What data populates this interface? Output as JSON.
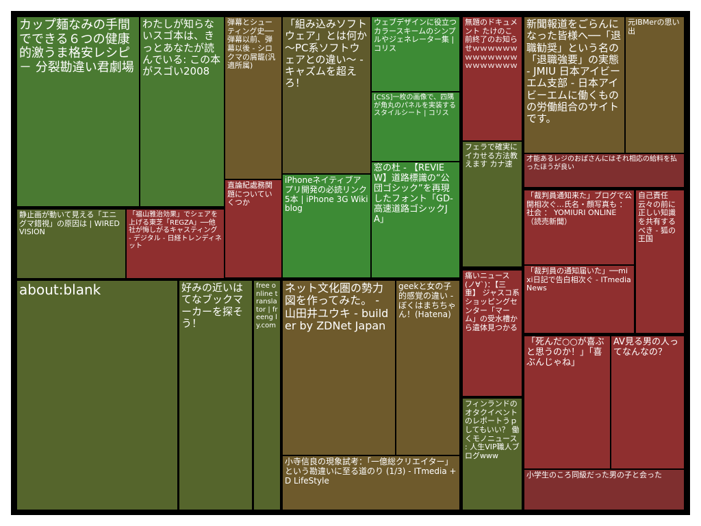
{
  "tiles": [
    {
      "key": "cupmen",
      "text": "カップ麺なみの手間でできる６つの健康的激うま格安レシピ － 分裂勘違い君劇場",
      "color": "#4a7a32"
    },
    {
      "key": "sugoi-hon",
      "text": "わたしが知らないスゴ本は、きっとあなたが読んでいる: この本がスゴい2008",
      "color": "#4a7a32"
    },
    {
      "key": "danmaku",
      "text": "弾幕とシューティング史──弾幕以前、弾幕以後 - シロクマの屑籠(汎適所属)",
      "color": "#6e5a2c"
    },
    {
      "key": "kumikomi",
      "text": "「組み込みソフトウェア」とは何か　～PC系ソフトウェアとの違い～ - キャズムを超えろ！",
      "color": "#5f5a2c"
    },
    {
      "key": "webdesign",
      "text": "ウェブデザインに役立つカラースキームのシンプルやジェネレーター集 | コリス",
      "color": "#3d8b35"
    },
    {
      "key": "mudai",
      "text": "無題のドキュメント たけのこ前終了のお知らせｗｗｗｗｗｗｗｗｗｗｗｗｗｗｗｗｗｗｗｗ",
      "color": "#8f2f2f"
    },
    {
      "key": "shinbun",
      "text": "新聞報道をごらんになった皆様へ──「退職勧奨」という名の「退職強要」の実態 - JMIU 日本アイビーエム支部 - 日本アイビーエムに働くものの労働組合のサイトです。",
      "color": "#6e5a2c"
    },
    {
      "key": "moto-ibm",
      "text": "元IBMerの思い出",
      "color": "#6e5a2c"
    },
    {
      "key": "css-kado",
      "text": "[CSS]一枚の画像で、四隅が角丸のパネルを実装するスタイルシート | コリス",
      "color": "#3d8b35"
    },
    {
      "key": "firefox",
      "text": "フェラで確実にイカせる方法教えます カナ速",
      "color": "#55652c"
    },
    {
      "key": "reji",
      "text": "才能あるレジのおばさんにはそれ相応の給料を払ったほうが良い",
      "color": "#7f2f2f"
    },
    {
      "key": "iphone",
      "text": "iPhoneネイティブアプリ開発の必読リンク5本 | iPhone 3G Wiki blog",
      "color": "#3d8b35"
    },
    {
      "key": "madonomori",
      "text": "窓の杜 - 【REVIEW】道路標識の“公団ゴシック”を再現したフォント「GD-高速道路ゴシックJA」",
      "color": "#3d8b35"
    },
    {
      "key": "chokuron",
      "text": "直論紀處務関題についていくつか",
      "color": "#8f2f2f"
    },
    {
      "key": "saibanin",
      "text": "「裁判員通知来た」ブログで公開相次ぐ…氏名・顔写真も ： 社会 ： YOMIURI ONLINE （読売新聞）",
      "color": "#8f2f2f"
    },
    {
      "key": "jiko",
      "text": "自己責任云々の前に正しい知識を共有するべき - 狐の王国",
      "color": "#8f2f2f"
    },
    {
      "key": "seishi",
      "text": "静止画が動いて見える「エニグマ錯視」の原因は | WIRED VISION",
      "color": "#55652c"
    },
    {
      "key": "fukuyama",
      "text": "「福山雅治効果」でシェアを上げる東芝「REGZA」──他社が悔しがるキャスティング - デジタル - 日経トレンディネット",
      "color": "#8f2f2f"
    },
    {
      "key": "itai-news",
      "text": "痛いニュース(ノ∀`)：【三重】 ジャスコ系ショッピングセンター「マーム」の受水槽から遺体見つかる",
      "color": "#8f2f2f"
    },
    {
      "key": "saibanin2",
      "text": "「裁判員の通知届いた」──mixi日記で告白相次ぐ - ITmedia News",
      "color": "#8f2f2f"
    },
    {
      "key": "aboutblank",
      "text": "about:blank",
      "color": "#55652c"
    },
    {
      "key": "hatena-bm",
      "text": "好みの近いはてなブックマーカーを探そう！",
      "color": "#55652c"
    },
    {
      "key": "translator",
      "text": "free online translator | freeng ly.com",
      "color": "#55652c"
    },
    {
      "key": "netbunka",
      "text": "ネット文化圏の勢力図を作ってみた。 - 山田井ユウキ - builder by ZDNet Japan",
      "color": "#6e5a2c"
    },
    {
      "key": "geek",
      "text": "geekと女の子的感覚の違い - ぼくはまちちゃん！(Hatena)",
      "color": "#6e5a2c"
    },
    {
      "key": "shinda",
      "text": "「死んだ○○が喜ぶと思うのか！」「喜ぶんじゃね」",
      "color": "#8f2f2f"
    },
    {
      "key": "av",
      "text": "AV見る男の人ってなんなの？",
      "color": "#8f2f2f"
    },
    {
      "key": "finland",
      "text": "フィンランドのオタクイベントのレポートうｐしてもいい？ 働くモノニュース : 人生VIP職人ブログwww",
      "color": "#55652c"
    },
    {
      "key": "kodera",
      "text": "小寺信良の現象試考：「一億総クリエイター」という勘違いに至る道のり (1/3) - ITmedia +D LifeStyle",
      "color": "#6e5a2c"
    },
    {
      "key": "shougakusei",
      "text": "小学生のころ同級だった男の子と会った",
      "color": "#7f2f2f"
    }
  ]
}
